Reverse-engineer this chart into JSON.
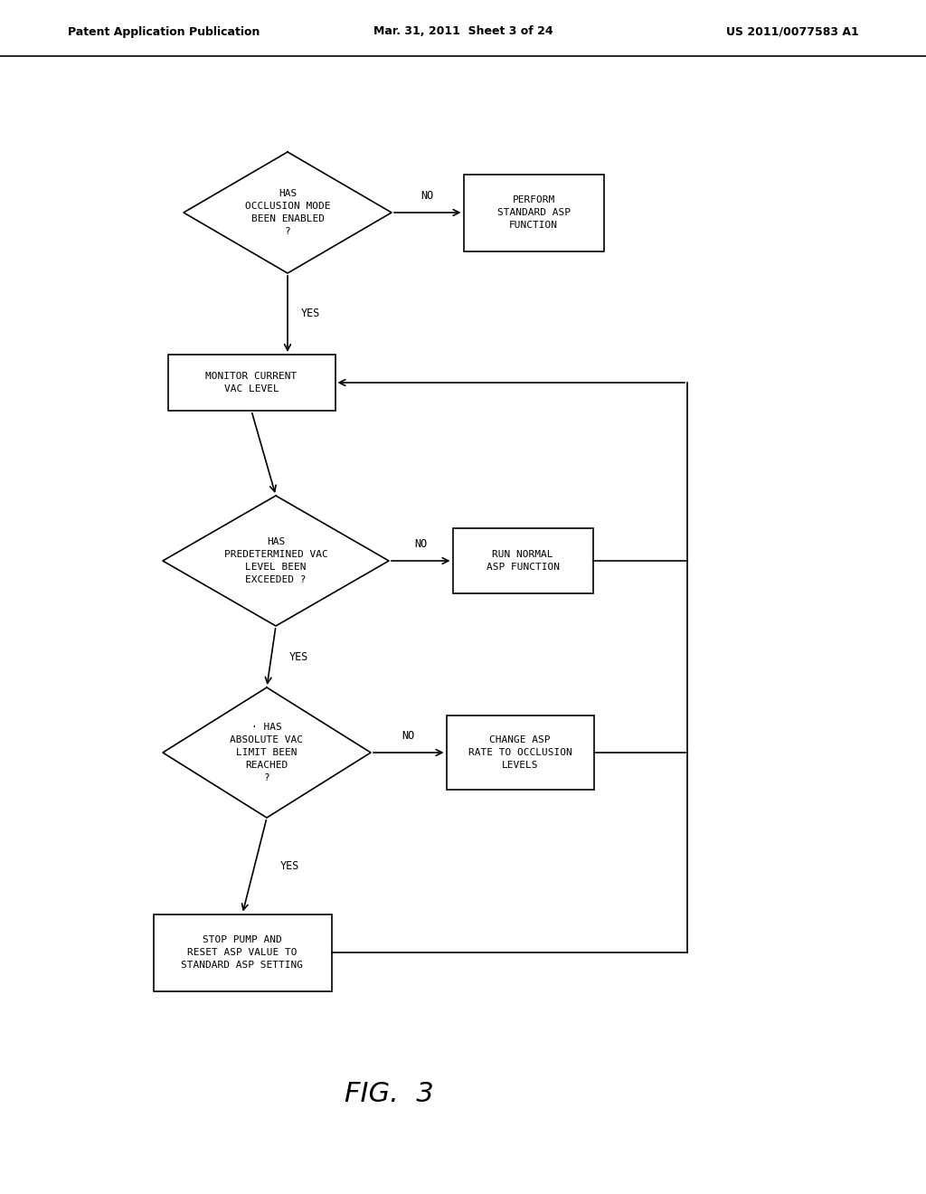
{
  "bg": "#ffffff",
  "lc": "#000000",
  "header_left": "Patent Application Publication",
  "header_mid": "Mar. 31, 2011  Sheet 3 of 24",
  "header_right": "US 2011/0077583 A1",
  "fig_label": "FIG.  3",
  "d1_text": "HAS\nOCCLUSION MODE\nBEEN ENABLED\n?",
  "bp_text": "PERFORM\nSTANDARD ASP\nFUNCTION",
  "bm_text": "MONITOR CURRENT\nVAC LEVEL",
  "d2_text": "HAS\nPREDETERMINED VAC\nLEVEL BEEN\nEXCEEDED ?",
  "br_text": "RUN NORMAL\nASP FUNCTION",
  "d3_text": "· HAS\nABSOLUTE VAC\nLIMIT BEEN\nREACHED\n?",
  "bc_text": "CHANGE ASP\nRATE TO OCCLUSION\nLEVELS",
  "bs_text": "STOP PUMP AND\nRESET ASP VALUE TO\nSTANDARD ASP SETTING",
  "lw": 1.2,
  "fs": 8.0,
  "fs_label": 8.5,
  "fs_yesno": 8.5,
  "fs_fig": 22
}
